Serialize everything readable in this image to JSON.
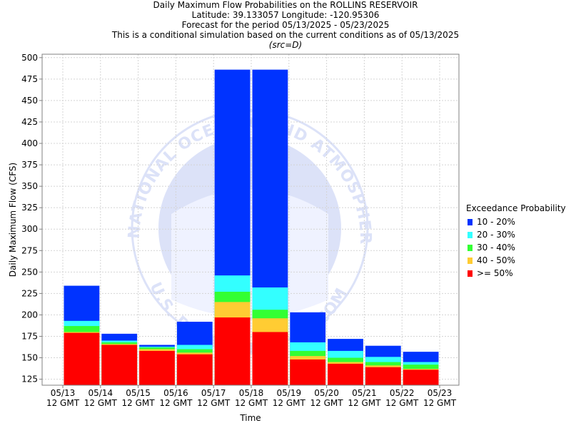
{
  "title": {
    "line1": "Daily Maximum Flow Probabilities on the ROLLINS RESERVOIR",
    "line2": "Latitude: 39.133057 Longitude: -120.95306",
    "line3": "Forecast for the period 05/13/2025 - 05/23/2025",
    "line4": "This is a conditional simulation based on the current conditions as of 05/13/2025",
    "src": "(src=D)"
  },
  "watermark": {
    "text_top": "NATIONAL OCEANIC AND ATMOSPHERIC ADMINISTRATION",
    "text_bottom": "U.S. DEPARTMENT OF COMMERCE"
  },
  "legend": {
    "title": "Exceedance Probability",
    "items": [
      {
        "label": "10 - 20%",
        "color": "#0033ff"
      },
      {
        "label": "20 - 30%",
        "color": "#33ffff"
      },
      {
        "label": "30 - 40%",
        "color": "#33ff33"
      },
      {
        "label": "40 - 50%",
        "color": "#ffcc33"
      },
      {
        "label": ">= 50%",
        "color": "#ff0000"
      }
    ]
  },
  "chart_data": {
    "type": "bar",
    "stacked": true,
    "xlabel": "Time",
    "ylabel": "Daily Maximum Flow (CFS)",
    "ylim": [
      118,
      504
    ],
    "yticks": [
      125,
      150,
      175,
      200,
      225,
      250,
      275,
      300,
      325,
      350,
      375,
      400,
      425,
      450,
      475,
      500
    ],
    "grid": true,
    "legend_position": "right",
    "x_tick_labels": [
      [
        "05/13",
        "12 GMT"
      ],
      [
        "05/14",
        "12 GMT"
      ],
      [
        "05/15",
        "12 GMT"
      ],
      [
        "05/16",
        "12 GMT"
      ],
      [
        "05/17",
        "12 GMT"
      ],
      [
        "05/18",
        "12 GMT"
      ],
      [
        "05/19",
        "12 GMT"
      ],
      [
        "05/20",
        "12 GMT"
      ],
      [
        "05/21",
        "12 GMT"
      ],
      [
        "05/22",
        "12 GMT"
      ],
      [
        "05/23",
        "12 GMT"
      ]
    ],
    "bars": [
      {
        "period": "05/13-05/14",
        "ge50": 179,
        "p40_50": 180,
        "p30_40": 187,
        "p20_30": 193,
        "p10_20": 234
      },
      {
        "period": "05/14-05/15",
        "ge50": 165,
        "p40_50": 166,
        "p30_40": 168,
        "p20_30": 170,
        "p10_20": 178
      },
      {
        "period": "05/15-05/16",
        "ge50": 158,
        "p40_50": 160,
        "p30_40": 162,
        "p20_30": 163,
        "p10_20": 165
      },
      {
        "period": "05/16-05/17",
        "ge50": 154,
        "p40_50": 156,
        "p30_40": 160,
        "p20_30": 165,
        "p10_20": 192
      },
      {
        "period": "05/17-05/18",
        "ge50": 197,
        "p40_50": 215,
        "p30_40": 227,
        "p20_30": 246,
        "p10_20": 486
      },
      {
        "period": "05/18-05/19",
        "ge50": 180,
        "p40_50": 196,
        "p30_40": 206,
        "p20_30": 232,
        "p10_20": 486
      },
      {
        "period": "05/19-05/20",
        "ge50": 148,
        "p40_50": 152,
        "p30_40": 158,
        "p20_30": 168,
        "p10_20": 203
      },
      {
        "period": "05/20-05/21",
        "ge50": 143,
        "p40_50": 145,
        "p30_40": 150,
        "p20_30": 158,
        "p10_20": 172
      },
      {
        "period": "05/21-05/22",
        "ge50": 139,
        "p40_50": 141,
        "p30_40": 145,
        "p20_30": 151,
        "p10_20": 164
      },
      {
        "period": "05/22-05/23",
        "ge50": 136,
        "p40_50": 137,
        "p30_40": 142,
        "p20_30": 145,
        "p10_20": 157
      }
    ]
  }
}
